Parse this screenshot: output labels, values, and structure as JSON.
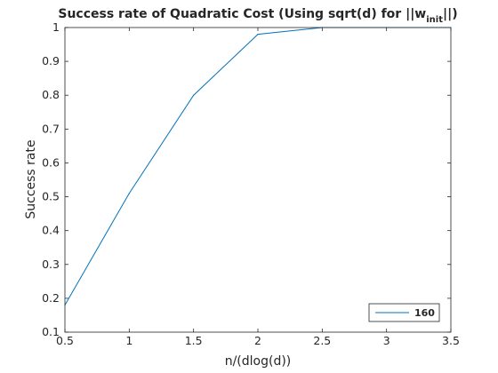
{
  "chart_data": {
    "type": "line",
    "title_main": "Success rate of Quadratic Cost (Using sqrt(d) for ||w",
    "title_sub": "init",
    "title_end": "||)",
    "xlabel": "n/(dlog(d))",
    "ylabel": "Success rate",
    "xlim": [
      0.5,
      3.5
    ],
    "ylim": [
      0.1,
      1.0
    ],
    "x_ticks": [
      0.5,
      1,
      1.5,
      2,
      2.5,
      3,
      3.5
    ],
    "x_tick_labels": [
      "0.5",
      "1",
      "1.5",
      "2",
      "2.5",
      "3",
      "3.5"
    ],
    "y_ticks": [
      0.1,
      0.2,
      0.3,
      0.4,
      0.5,
      0.6,
      0.7,
      0.8,
      0.9,
      1.0
    ],
    "y_tick_labels": [
      "0.1",
      "0.2",
      "0.3",
      "0.4",
      "0.5",
      "0.6",
      "0.7",
      "0.8",
      "0.9",
      "1"
    ],
    "grid": false,
    "legend_position": "bottom-right",
    "series": [
      {
        "name": "160",
        "color": "#0072bd",
        "x": [
          0.5,
          1.0,
          1.5,
          2.0,
          2.5,
          3.0,
          3.5
        ],
        "y": [
          0.18,
          0.51,
          0.8,
          0.98,
          1.0,
          1.0,
          1.0
        ]
      }
    ]
  }
}
